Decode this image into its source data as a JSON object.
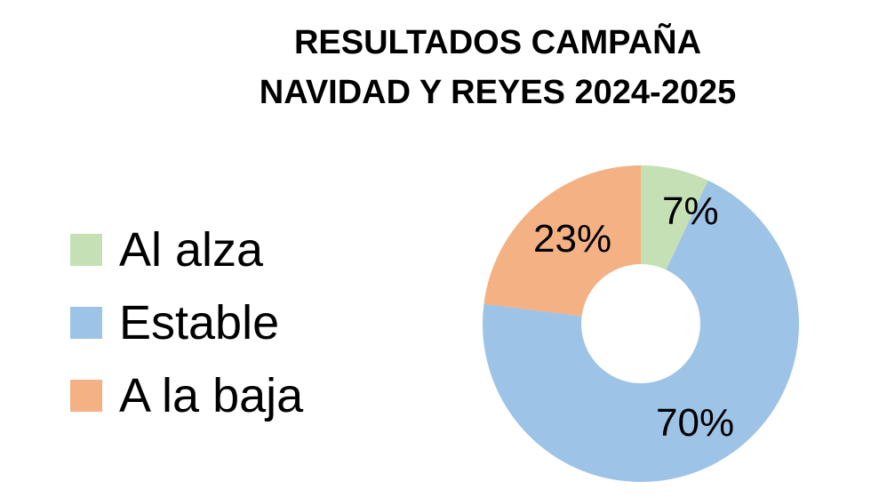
{
  "title": {
    "line1": "RESULTADOS CAMPAÑA",
    "line2": "NAVIDAD Y REYES 2024-2025"
  },
  "legend": {
    "items": [
      {
        "label": "Al alza",
        "color": "#c5e0b4"
      },
      {
        "label": "Estable",
        "color": "#9dc3e6"
      },
      {
        "label": "A la baja",
        "color": "#f4b183"
      }
    ]
  },
  "labels": {
    "al_alza": "7%",
    "estable": "70%",
    "a_la_baja": "23%"
  },
  "chart_data": {
    "type": "pie",
    "subtype": "donut",
    "title": "RESULTADOS CAMPAÑA NAVIDAD Y REYES 2024-2025",
    "categories": [
      "Al alza",
      "Estable",
      "A la baja"
    ],
    "values": [
      7,
      70,
      23
    ],
    "value_labels": [
      "7%",
      "70%",
      "23%"
    ],
    "colors": [
      "#c5e0b4",
      "#9dc3e6",
      "#f4b183"
    ],
    "start_angle": "12 o'clock, clockwise",
    "legend_position": "left",
    "grid": false
  }
}
